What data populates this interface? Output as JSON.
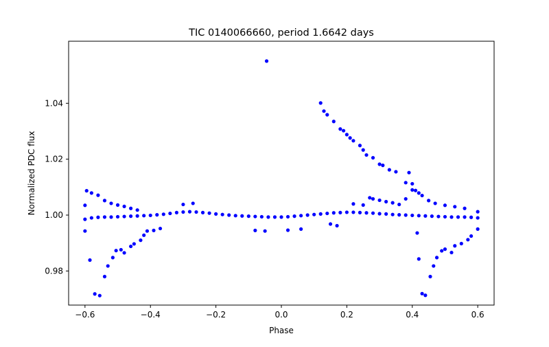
{
  "chart_data": {
    "type": "scatter",
    "title": "TIC 0140066660, period 1.6642 days",
    "xlabel": "Phase",
    "ylabel": "Normalized PDC flux",
    "xlim": [
      -0.65,
      0.65
    ],
    "ylim": [
      0.9678,
      1.0622
    ],
    "xticks": [
      -0.6,
      -0.4,
      -0.2,
      0.0,
      0.2,
      0.4,
      0.6
    ],
    "xtick_labels": [
      "−0.6",
      "−0.4",
      "−0.2",
      "0.0",
      "0.2",
      "0.4",
      "0.6"
    ],
    "yticks": [
      0.98,
      1.0,
      1.02,
      1.04
    ],
    "ytick_labels": [
      "0.98",
      "1.00",
      "1.02",
      "1.04"
    ],
    "grid": false,
    "marker_color": "#0000ff",
    "series": [
      {
        "name": "baseline",
        "points": [
          [
            -0.6,
            0.9985
          ],
          [
            -0.58,
            0.999
          ],
          [
            -0.56,
            0.9992
          ],
          [
            -0.54,
            0.9993
          ],
          [
            -0.52,
            0.9993
          ],
          [
            -0.5,
            0.9994
          ],
          [
            -0.48,
            0.9995
          ],
          [
            -0.46,
            0.9996
          ],
          [
            -0.44,
            0.9997
          ],
          [
            -0.42,
            0.9998
          ],
          [
            -0.4,
            0.9999
          ],
          [
            -0.38,
            1.0001
          ],
          [
            -0.36,
            1.0003
          ],
          [
            -0.34,
            1.0006
          ],
          [
            -0.32,
            1.0009
          ],
          [
            -0.3,
            1.0011
          ],
          [
            -0.28,
            1.0012
          ],
          [
            -0.26,
            1.0011
          ],
          [
            -0.24,
            1.0009
          ],
          [
            -0.22,
            1.0007
          ],
          [
            -0.2,
            1.0004
          ],
          [
            -0.18,
            1.0002
          ],
          [
            -0.16,
            1.0
          ],
          [
            -0.14,
            0.9998
          ],
          [
            -0.12,
            0.9997
          ],
          [
            -0.1,
            0.9996
          ],
          [
            -0.08,
            0.9995
          ],
          [
            -0.06,
            0.9994
          ],
          [
            -0.04,
            0.9993
          ],
          [
            -0.02,
            0.9993
          ],
          [
            0.0,
            0.9993
          ],
          [
            0.02,
            0.9994
          ],
          [
            0.04,
            0.9996
          ],
          [
            0.06,
            0.9998
          ],
          [
            0.08,
            1.0
          ],
          [
            0.1,
            1.0002
          ],
          [
            0.12,
            1.0004
          ],
          [
            0.14,
            1.0006
          ],
          [
            0.16,
            1.0008
          ],
          [
            0.18,
            1.0009
          ],
          [
            0.2,
            1.001
          ],
          [
            0.22,
            1.001
          ],
          [
            0.24,
            1.0009
          ],
          [
            0.26,
            1.0008
          ],
          [
            0.28,
            1.0007
          ],
          [
            0.3,
            1.0005
          ],
          [
            0.32,
            1.0004
          ],
          [
            0.34,
            1.0002
          ],
          [
            0.36,
            1.0001
          ],
          [
            0.38,
            1.0
          ],
          [
            0.4,
            0.9999
          ],
          [
            0.42,
            0.9998
          ],
          [
            0.44,
            0.9997
          ],
          [
            0.46,
            0.9996
          ],
          [
            0.48,
            0.9995
          ],
          [
            0.5,
            0.9994
          ],
          [
            0.52,
            0.9993
          ],
          [
            0.54,
            0.9993
          ],
          [
            0.56,
            0.9993
          ],
          [
            0.58,
            0.9992
          ],
          [
            0.6,
            0.999
          ]
        ]
      },
      {
        "name": "outliers",
        "points": [
          [
            -0.045,
            1.0551
          ],
          [
            0.12,
            1.0401
          ],
          [
            0.13,
            1.0372
          ],
          [
            0.14,
            1.0359
          ],
          [
            0.16,
            1.0335
          ],
          [
            0.18,
            1.0308
          ],
          [
            0.19,
            1.0302
          ],
          [
            0.2,
            1.0288
          ],
          [
            0.21,
            1.0276
          ],
          [
            0.22,
            1.0266
          ],
          [
            0.24,
            1.0249
          ],
          [
            0.25,
            1.0233
          ],
          [
            0.26,
            1.0215
          ],
          [
            0.28,
            1.0205
          ],
          [
            0.3,
            1.0182
          ],
          [
            0.31,
            1.0178
          ],
          [
            0.33,
            1.0162
          ],
          [
            0.35,
            1.0155
          ],
          [
            0.39,
            1.0152
          ],
          [
            0.38,
            1.0116
          ],
          [
            0.4,
            1.0112
          ],
          [
            0.4,
            1.009
          ],
          [
            0.41,
            1.0088
          ],
          [
            0.42,
            1.0079
          ],
          [
            0.43,
            1.007
          ],
          [
            0.45,
            1.0052
          ],
          [
            0.47,
            1.0042
          ],
          [
            0.5,
            1.0035
          ],
          [
            0.53,
            1.003
          ],
          [
            0.56,
            1.0024
          ],
          [
            0.27,
            1.0062
          ],
          [
            0.28,
            1.0058
          ],
          [
            0.3,
            1.0053
          ],
          [
            0.32,
            1.0048
          ],
          [
            0.34,
            1.0044
          ],
          [
            0.36,
            1.0038
          ],
          [
            0.38,
            1.0058
          ],
          [
            -0.595,
            1.0087
          ],
          [
            -0.58,
            1.0079
          ],
          [
            -0.56,
            1.0071
          ],
          [
            -0.54,
            1.0052
          ],
          [
            -0.52,
            1.0042
          ],
          [
            -0.5,
            1.0036
          ],
          [
            -0.48,
            1.0031
          ],
          [
            -0.46,
            1.0024
          ],
          [
            -0.44,
            1.0018
          ],
          [
            -0.585,
            0.9839
          ],
          [
            -0.57,
            0.9718
          ],
          [
            -0.555,
            0.9712
          ],
          [
            -0.54,
            0.978
          ],
          [
            -0.53,
            0.9818
          ],
          [
            -0.515,
            0.9848
          ],
          [
            -0.505,
            0.9873
          ],
          [
            -0.49,
            0.9876
          ],
          [
            -0.48,
            0.9865
          ],
          [
            -0.46,
            0.9888
          ],
          [
            -0.45,
            0.9897
          ],
          [
            -0.43,
            0.991
          ],
          [
            -0.42,
            0.9928
          ],
          [
            -0.41,
            0.9943
          ],
          [
            -0.39,
            0.9945
          ],
          [
            -0.37,
            0.9952
          ],
          [
            0.42,
            0.9843
          ],
          [
            0.43,
            0.9719
          ],
          [
            0.44,
            0.9713
          ],
          [
            0.455,
            0.978
          ],
          [
            0.465,
            0.9818
          ],
          [
            0.475,
            0.9848
          ],
          [
            0.49,
            0.9872
          ],
          [
            0.5,
            0.9878
          ],
          [
            0.52,
            0.9866
          ],
          [
            0.53,
            0.989
          ],
          [
            0.55,
            0.9898
          ],
          [
            0.57,
            0.9912
          ],
          [
            0.58,
            0.9925
          ],
          [
            0.415,
            0.9936
          ],
          [
            0.6,
            0.995
          ],
          [
            -0.6,
            0.9943
          ],
          [
            -0.6,
            1.0035
          ],
          [
            0.6,
            1.0012
          ],
          [
            -0.3,
            1.0038
          ],
          [
            -0.27,
            1.0042
          ],
          [
            0.22,
            1.004
          ],
          [
            0.25,
            1.0036
          ],
          [
            -0.05,
            0.9943
          ],
          [
            -0.08,
            0.9945
          ],
          [
            0.02,
            0.9946
          ],
          [
            0.06,
            0.995
          ],
          [
            0.17,
            0.9962
          ],
          [
            0.15,
            0.9968
          ]
        ]
      }
    ]
  }
}
